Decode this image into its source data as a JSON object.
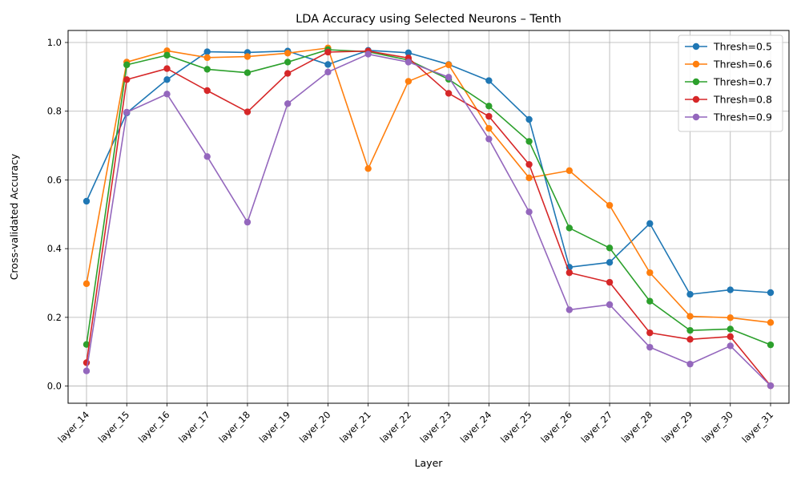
{
  "chart_data": {
    "type": "line",
    "title": "LDA Accuracy using Selected Neurons – Tenth",
    "xlabel": "Layer",
    "ylabel": "Cross-validated Accuracy",
    "categories": [
      "layer_14",
      "layer_15",
      "layer_16",
      "layer_17",
      "layer_18",
      "layer_19",
      "layer_20",
      "layer_21",
      "layer_22",
      "layer_23",
      "layer_24",
      "layer_25",
      "layer_26",
      "layer_27",
      "layer_28",
      "layer_29",
      "layer_30",
      "layer_31"
    ],
    "ylim": [
      -0.05,
      1.035
    ],
    "yticks": [
      0.0,
      0.2,
      0.4,
      0.6,
      0.8,
      1.0
    ],
    "ytick_labels": [
      "0.0",
      "0.2",
      "0.4",
      "0.6",
      "0.8",
      "1.0"
    ],
    "grid": true,
    "legend_position": "top-right",
    "series": [
      {
        "name": "Thresh=0.5",
        "color": "#1f77b4",
        "values": [
          0.538,
          0.795,
          0.892,
          0.973,
          0.971,
          0.975,
          0.936,
          0.977,
          0.97,
          0.936,
          0.889,
          0.776,
          0.346,
          0.36,
          0.473,
          0.267,
          0.28,
          0.272
        ]
      },
      {
        "name": "Thresh=0.6",
        "color": "#ff7f0e",
        "values": [
          0.298,
          0.943,
          0.976,
          0.956,
          0.959,
          0.969,
          0.984,
          0.633,
          0.887,
          0.935,
          0.75,
          0.606,
          0.627,
          0.526,
          0.33,
          0.203,
          0.199,
          0.185
        ]
      },
      {
        "name": "Thresh=0.7",
        "color": "#2ca02c",
        "values": [
          0.121,
          0.935,
          0.963,
          0.922,
          0.912,
          0.943,
          0.979,
          0.973,
          0.949,
          0.893,
          0.815,
          0.712,
          0.46,
          0.402,
          0.247,
          0.162,
          0.166,
          0.12
        ]
      },
      {
        "name": "Thresh=0.8",
        "color": "#d62728",
        "values": [
          0.068,
          0.892,
          0.924,
          0.86,
          0.798,
          0.91,
          0.972,
          0.975,
          0.955,
          0.852,
          0.785,
          0.645,
          0.33,
          0.302,
          0.155,
          0.136,
          0.144,
          0.001
        ]
      },
      {
        "name": "Thresh=0.9",
        "color": "#9467bd",
        "values": [
          0.044,
          0.797,
          0.85,
          0.668,
          0.477,
          0.822,
          0.914,
          0.966,
          0.943,
          0.899,
          0.719,
          0.507,
          0.222,
          0.237,
          0.113,
          0.064,
          0.117,
          0.001
        ]
      }
    ]
  }
}
